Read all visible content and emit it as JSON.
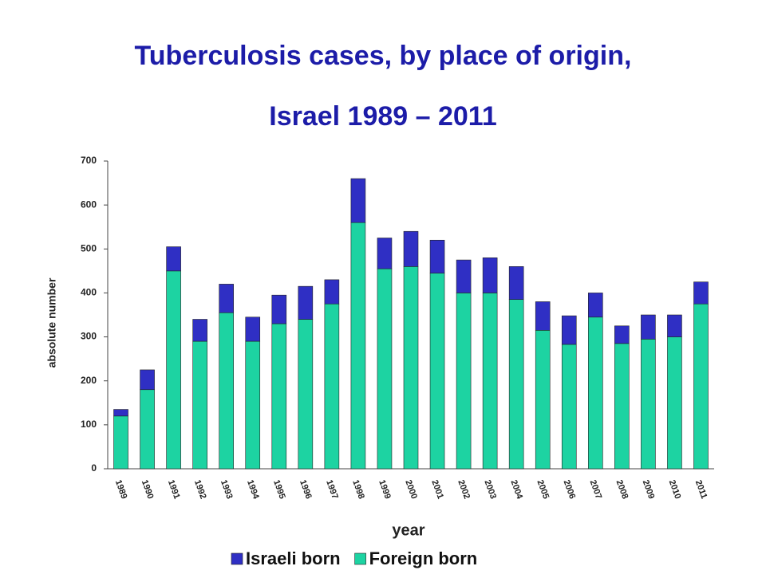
{
  "chart_data": {
    "type": "bar",
    "stacked": true,
    "title": [
      "Tuberculosis cases, by place of origin,",
      "Israel 1989 – 2011"
    ],
    "x_label": "year",
    "y_label": "absolute number",
    "categories": [
      "1989",
      "1990",
      "1991",
      "1992",
      "1993",
      "1994",
      "1995",
      "1996",
      "1997",
      "1998",
      "1999",
      "2000",
      "2001",
      "2002",
      "2003",
      "2004",
      "2005",
      "2006",
      "2007",
      "2008",
      "2009",
      "2010",
      "2011"
    ],
    "series": [
      {
        "name": "Foreign born",
        "color": "#1dd3a2",
        "values": [
          120,
          180,
          450,
          290,
          355,
          290,
          330,
          340,
          375,
          560,
          455,
          460,
          445,
          400,
          400,
          385,
          315,
          283,
          345,
          285,
          295,
          300,
          375
        ]
      },
      {
        "name": "Israeli born",
        "color": "#2f2fc4",
        "values": [
          15,
          45,
          55,
          50,
          65,
          55,
          65,
          75,
          55,
          100,
          70,
          80,
          75,
          75,
          80,
          75,
          65,
          65,
          55,
          40,
          55,
          50,
          50
        ]
      }
    ],
    "legend_order": [
      1,
      0
    ],
    "ylim": [
      0,
      700
    ],
    "yticks": [
      0,
      100,
      200,
      300,
      400,
      500,
      600,
      700
    ]
  }
}
